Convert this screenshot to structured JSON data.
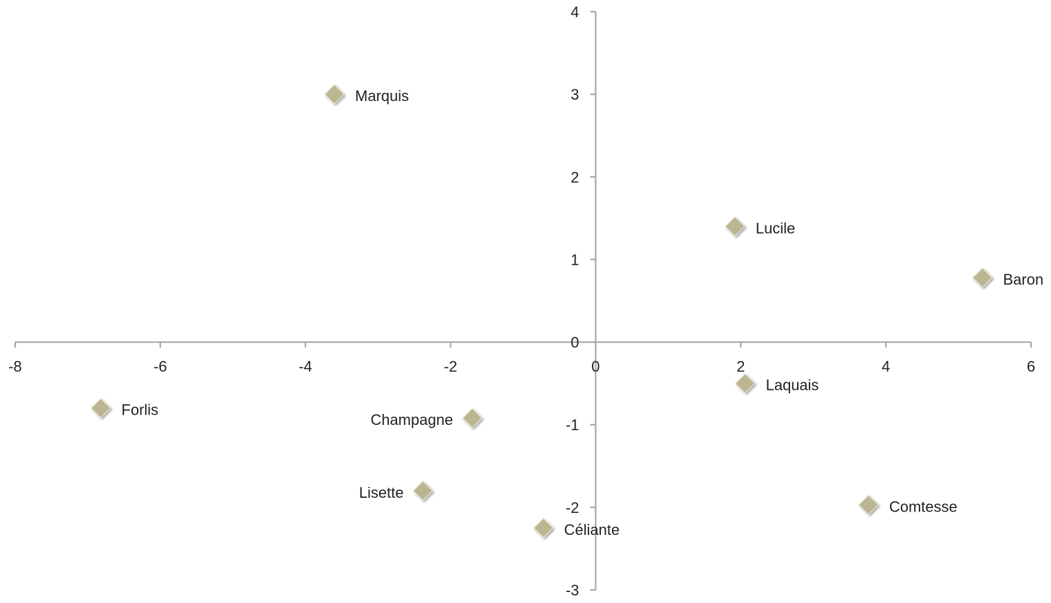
{
  "chart_data": {
    "type": "scatter",
    "title": "",
    "xlabel": "",
    "ylabel": "",
    "xlim": [
      -8,
      6
    ],
    "ylim": [
      -3,
      4
    ],
    "xticks": [
      -8,
      -6,
      -4,
      -2,
      0,
      2,
      4,
      6
    ],
    "yticks": [
      -3,
      -2,
      -1,
      0,
      1,
      2,
      3,
      4
    ],
    "xtick_labels": [
      "-8",
      "-6",
      "-4",
      "-2",
      "0",
      "2",
      "4",
      "6"
    ],
    "ytick_labels": [
      "-3",
      "-2",
      "-1",
      "0",
      "1",
      "2",
      "3",
      "4"
    ],
    "grid": false,
    "legend": "none",
    "marker": "diamond",
    "marker_color": "#bbb592",
    "axes_color": "#a6a6a6",
    "points": [
      {
        "label": "Marquis",
        "x": -3.6,
        "y": 3.0,
        "label_side": "right"
      },
      {
        "label": "Lucile",
        "x": 1.92,
        "y": 1.4,
        "label_side": "right"
      },
      {
        "label": "Baron",
        "x": 5.33,
        "y": 0.78,
        "label_side": "right"
      },
      {
        "label": "Forlis",
        "x": -6.82,
        "y": -0.8,
        "label_side": "right"
      },
      {
        "label": "Champagne",
        "x": -1.7,
        "y": -0.92,
        "label_side": "left"
      },
      {
        "label": "Laquais",
        "x": 2.06,
        "y": -0.5,
        "label_side": "right"
      },
      {
        "label": "Lisette",
        "x": -2.38,
        "y": -1.8,
        "label_side": "left"
      },
      {
        "label": "Comtesse",
        "x": 3.76,
        "y": -1.97,
        "label_side": "right"
      },
      {
        "label": "Céliante",
        "x": -0.72,
        "y": -2.25,
        "label_side": "right"
      }
    ]
  }
}
